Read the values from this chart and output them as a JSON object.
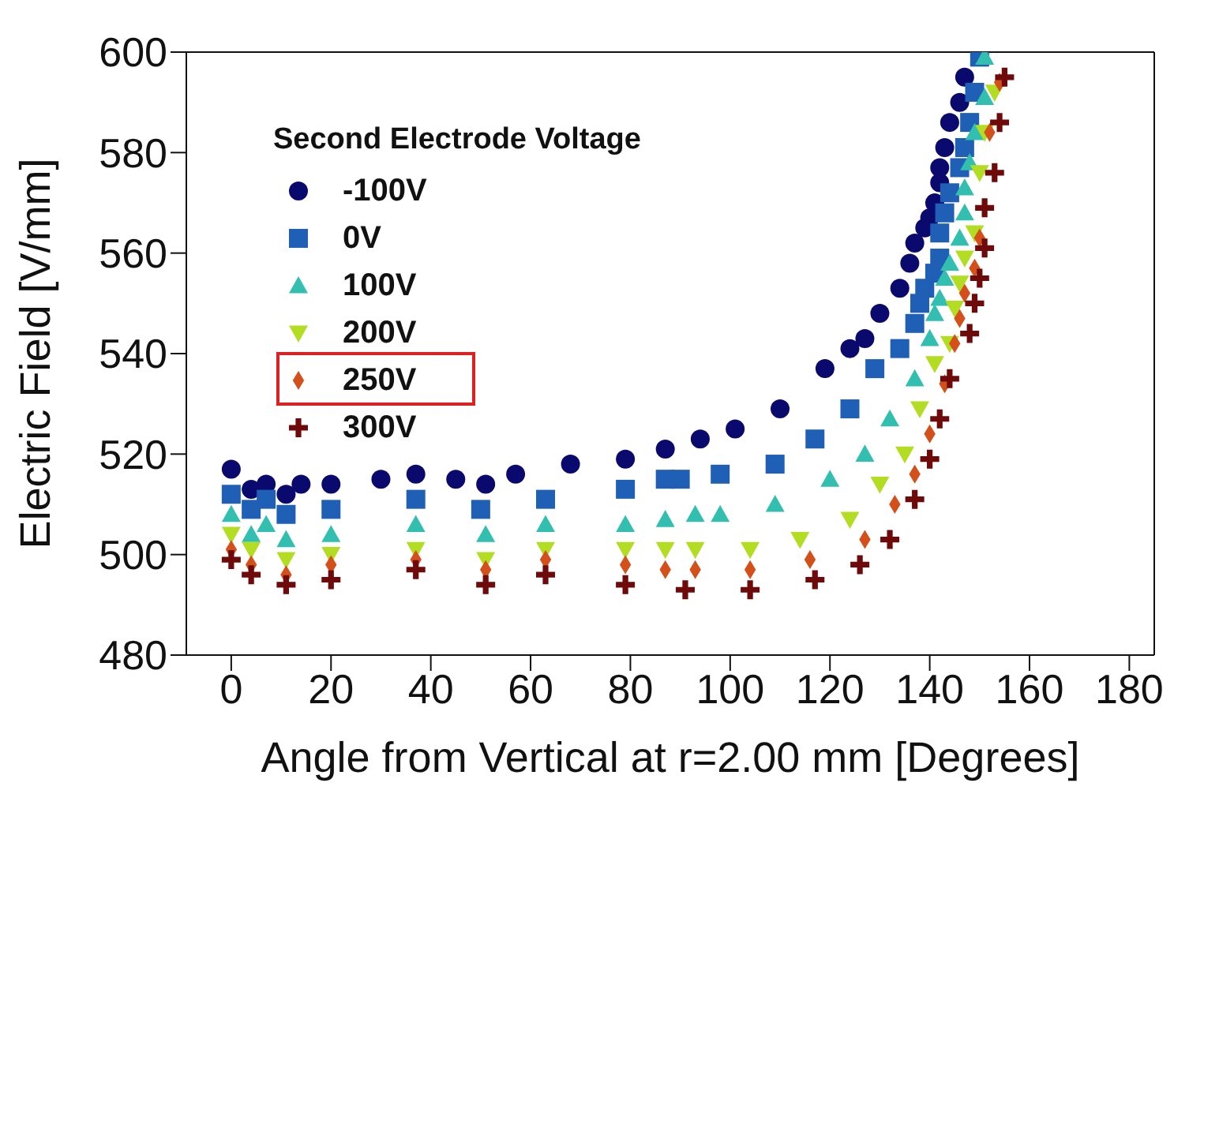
{
  "chart_data": {
    "type": "scatter",
    "xlabel": "Angle from Vertical at r=2.00 mm [Degrees]",
    "ylabel": "Electric Field [V/mm]",
    "legend_title": "Second Electrode Voltage",
    "legend": "top left",
    "xlim": [
      -9,
      185
    ],
    "xticks": [
      0,
      20,
      40,
      60,
      80,
      100,
      120,
      140,
      160,
      180
    ],
    "ylim": [
      480,
      600
    ],
    "yticks": [
      480,
      500,
      520,
      540,
      560,
      580,
      600
    ],
    "series": [
      {
        "name": "-100V",
        "color": "#0a0a6e",
        "marker": "circle",
        "x": [
          0,
          4,
          7,
          11,
          14,
          20,
          30,
          37,
          45,
          51,
          57,
          68,
          79,
          87,
          94,
          101,
          110,
          119,
          124,
          127,
          130,
          134,
          136,
          137,
          139,
          140,
          141,
          142,
          142,
          143,
          144,
          146,
          147
        ],
        "values": [
          517,
          513,
          514,
          512,
          514,
          514,
          515,
          516,
          515,
          514,
          516,
          518,
          519,
          521,
          523,
          525,
          529,
          537,
          541,
          543,
          548,
          553,
          558,
          562,
          565,
          567,
          570,
          574,
          577,
          581,
          586,
          590,
          595
        ]
      },
      {
        "name": "0V",
        "color": "#1f5fb5",
        "marker": "square",
        "x": [
          0,
          4,
          7,
          11,
          20,
          37,
          50,
          63,
          79,
          87,
          90,
          98,
          109,
          117,
          124,
          129,
          134,
          137,
          138,
          139,
          141,
          142,
          142,
          143,
          144,
          146,
          147,
          148,
          149,
          150
        ],
        "values": [
          512,
          509,
          511,
          508,
          509,
          511,
          509,
          511,
          513,
          515,
          515,
          516,
          518,
          523,
          529,
          537,
          541,
          546,
          550,
          553,
          556,
          559,
          564,
          568,
          572,
          577,
          581,
          586,
          592,
          599
        ]
      },
      {
        "name": "100V",
        "color": "#33bfb0",
        "marker": "triangle",
        "x": [
          0,
          4,
          7,
          11,
          20,
          37,
          51,
          63,
          79,
          87,
          93,
          98,
          109,
          120,
          127,
          132,
          137,
          140,
          141,
          142,
          143,
          144,
          146,
          147,
          147,
          148,
          149,
          151,
          151
        ],
        "values": [
          508,
          504,
          506,
          503,
          504,
          506,
          504,
          506,
          506,
          507,
          508,
          508,
          510,
          515,
          520,
          527,
          535,
          543,
          548,
          551,
          555,
          558,
          563,
          568,
          573,
          578,
          584,
          591,
          599
        ]
      },
      {
        "name": "200V",
        "color": "#b2dd22",
        "marker": "triangle-down",
        "x": [
          0,
          4,
          11,
          20,
          37,
          51,
          63,
          79,
          87,
          93,
          104,
          114,
          124,
          130,
          135,
          138,
          141,
          144,
          145,
          146,
          147,
          149,
          150,
          151,
          153
        ],
        "values": [
          504,
          501,
          499,
          500,
          501,
          499,
          501,
          501,
          501,
          501,
          501,
          503,
          507,
          514,
          520,
          529,
          538,
          542,
          549,
          554,
          559,
          564,
          576,
          584,
          592
        ]
      },
      {
        "name": "250V",
        "color": "#d4501a",
        "marker": "diamond",
        "x": [
          0,
          4,
          11,
          20,
          37,
          51,
          63,
          79,
          87,
          93,
          104,
          116,
          127,
          133,
          137,
          140,
          143,
          145,
          146,
          147,
          149,
          150,
          152,
          154
        ],
        "values": [
          501,
          498,
          496,
          498,
          499,
          497,
          499,
          498,
          497,
          497,
          497,
          499,
          503,
          510,
          516,
          524,
          534,
          542,
          547,
          552,
          557,
          563,
          584,
          594
        ]
      },
      {
        "name": "300V",
        "color": "#6e0a0a",
        "marker": "cross",
        "x": [
          0,
          4,
          11,
          20,
          37,
          51,
          63,
          79,
          91,
          104,
          117,
          126,
          132,
          137,
          140,
          142,
          144,
          148,
          149,
          150,
          151,
          151,
          153,
          154,
          155
        ],
        "values": [
          499,
          496,
          494,
          495,
          497,
          494,
          496,
          494,
          493,
          493,
          495,
          498,
          503,
          511,
          519,
          527,
          535,
          544,
          550,
          555,
          561,
          569,
          576,
          586,
          595
        ]
      }
    ]
  }
}
